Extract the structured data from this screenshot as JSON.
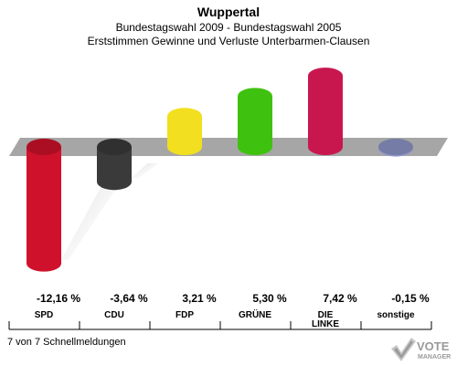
{
  "header": {
    "title": "Wuppertal",
    "subtitle": "Bundestagswahl 2009 - Bundestagswahl 2005",
    "subtitle2": "Erststimmen Gewinne und Verluste Unterbarmen-Clausen"
  },
  "chart_data": {
    "type": "bar",
    "categories": [
      "SPD",
      "CDU",
      "FDP",
      "GRÜNE",
      "DIE LINKE",
      "sonstige"
    ],
    "category_lines": [
      [
        "SPD"
      ],
      [
        "CDU"
      ],
      [
        "FDP"
      ],
      [
        "GRÜNE"
      ],
      [
        "DIE",
        "LINKE"
      ],
      [
        "sonstige"
      ]
    ],
    "values": [
      -12.16,
      -3.64,
      3.21,
      5.3,
      7.42,
      -0.15
    ],
    "value_labels": [
      "-12,16 %",
      "-3,64 %",
      "3,21 %",
      "5,30 %",
      "7,42 %",
      "-0,15 %"
    ],
    "colors": [
      "#d0112b",
      "#3a3a3a",
      "#f2df1f",
      "#3fc20f",
      "#c8174f",
      "#8f97c9"
    ],
    "ylim": [
      -13,
      8
    ]
  },
  "footer": {
    "text": "7 von 7 Schnellmeldungen"
  },
  "logo": {
    "line1": "VOTE",
    "line2": "MANAGER"
  }
}
